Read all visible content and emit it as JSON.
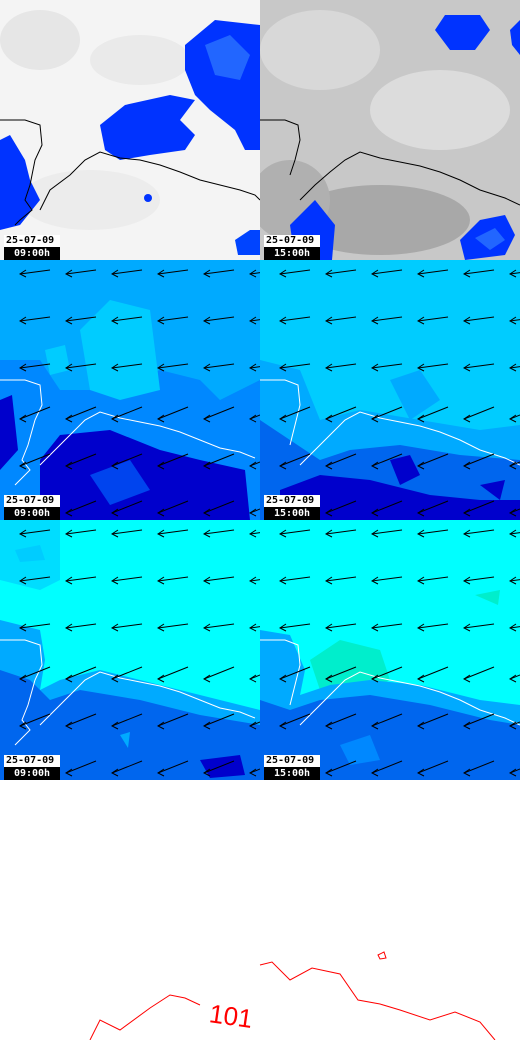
{
  "panels": [
    {
      "date": "25-07-09",
      "time": "09:00h"
    },
    {
      "date": "25-07-09",
      "time": "15:00h"
    },
    {
      "date": "25-07-09",
      "time": "09:00h"
    },
    {
      "date": "25-07-09",
      "time": "15:00h"
    },
    {
      "date": "25-07-09",
      "time": "09:00h"
    },
    {
      "date": "25-07-09",
      "time": "15:00h"
    }
  ],
  "pressure_label": "101",
  "colors": {
    "precip_blue": "#0033ff",
    "precip_mid": "#0055ee",
    "cloud_grey": "#b8b8b8",
    "wind_light": "#00ccff",
    "wind_mid": "#0088ff",
    "wind_dark": "#0000cc",
    "wind_cyan": "#00ffff",
    "wind_teal": "#00eecc",
    "isobar": "#ff0000"
  }
}
